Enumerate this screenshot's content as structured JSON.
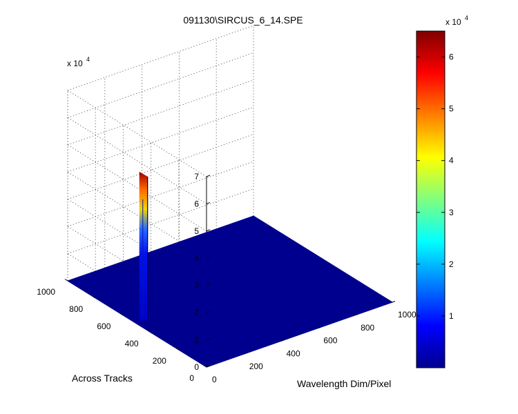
{
  "chart_data": {
    "type": "surface3d",
    "title": "091130\\SIRCUS_6_14.SPE",
    "xlabel": "Wavelength Dim/Pixel",
    "ylabel": "Across Tracks",
    "zlabel": "",
    "xlim": [
      0,
      1000
    ],
    "ylim": [
      0,
      1000
    ],
    "zlim": [
      0,
      70000
    ],
    "x_ticks": [
      "0",
      "200",
      "400",
      "600",
      "800",
      "1000"
    ],
    "y_ticks": [
      "0",
      "200",
      "400",
      "600",
      "800",
      "1000"
    ],
    "z_ticks": [
      "0",
      "1",
      "2",
      "3",
      "4",
      "5",
      "6",
      "7"
    ],
    "z_exponent": {
      "base": "x 10",
      "power": "4"
    },
    "baseline_z": 0,
    "peak": {
      "x": 25,
      "y_range": [
        385,
        590
      ],
      "z_max": 52000
    },
    "grid": true,
    "colormap": "jet",
    "colorbar": {
      "range": [
        0,
        65000
      ],
      "ticks": [
        "1",
        "2",
        "3",
        "4",
        "5",
        "6"
      ],
      "tick_values": [
        10000,
        20000,
        30000,
        40000,
        50000,
        60000
      ],
      "exponent": {
        "base": "x 10",
        "power": "4"
      }
    }
  }
}
